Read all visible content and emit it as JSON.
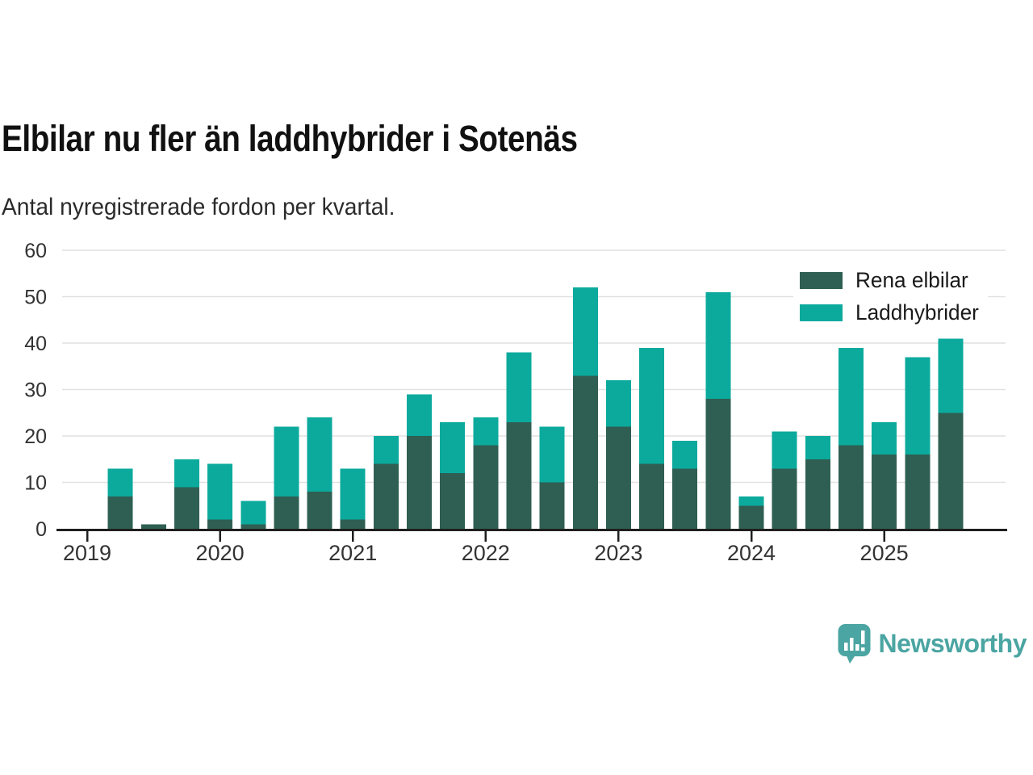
{
  "header": {
    "title": "Elbilar nu fler än laddhybrider i Sotenäs",
    "subtitle": "Antal nyregistrerade fordon per kvartal."
  },
  "colors": {
    "rena_elbilar": "#2F5F53",
    "laddhybrider": "#0BAA9D",
    "gridline": "#E1E1E1",
    "axis": "#1F1F1F",
    "tick_label": "#333333",
    "brand_teal": "#4BA5A2"
  },
  "legend": {
    "items": [
      {
        "label": "Rena elbilar",
        "color": "#2F5F53"
      },
      {
        "label": "Laddhybrider",
        "color": "#0BAA9D"
      }
    ]
  },
  "branding": {
    "logo_text": "Newsworthy",
    "logo_icon": "newsworthy-speech-bubble-bar-chart-icon"
  },
  "chart_data": {
    "type": "bar",
    "stacked": true,
    "title": "Elbilar nu fler än laddhybrider i Sotenäs",
    "subtitle": "Antal nyregistrerade fordon per kvartal.",
    "x": [
      "2019 Q1",
      "2019 Q2",
      "2019 Q3",
      "2019 Q4",
      "2020 Q1",
      "2020 Q2",
      "2020 Q3",
      "2020 Q4",
      "2021 Q1",
      "2021 Q2",
      "2021 Q3",
      "2021 Q4",
      "2022 Q1",
      "2022 Q2",
      "2022 Q3",
      "2022 Q4",
      "2023 Q1",
      "2023 Q2",
      "2023 Q3",
      "2023 Q4",
      "2024 Q1",
      "2024 Q2",
      "2024 Q3",
      "2024 Q4",
      "2025 Q1",
      "2025 Q2",
      "2025 Q3"
    ],
    "series": [
      {
        "name": "Rena elbilar",
        "color": "#2F5F53",
        "values": [
          0,
          7,
          1,
          9,
          2,
          1,
          7,
          8,
          2,
          14,
          20,
          12,
          18,
          23,
          10,
          33,
          22,
          14,
          13,
          28,
          5,
          13,
          15,
          18,
          16,
          16,
          25
        ]
      },
      {
        "name": "Laddhybrider",
        "color": "#0BAA9D",
        "values": [
          0,
          6,
          0,
          6,
          12,
          5,
          15,
          16,
          11,
          6,
          9,
          11,
          6,
          15,
          12,
          19,
          10,
          25,
          6,
          23,
          2,
          8,
          5,
          21,
          7,
          21,
          16
        ]
      }
    ],
    "totals": [
      0,
      13,
      1,
      15,
      14,
      6,
      22,
      24,
      13,
      20,
      29,
      23,
      24,
      38,
      22,
      52,
      32,
      39,
      19,
      51,
      7,
      21,
      20,
      39,
      23,
      37,
      41
    ],
    "ylim": [
      0,
      60
    ],
    "yticks": [
      0,
      10,
      20,
      30,
      40,
      50,
      60
    ],
    "xticks": [
      "2019",
      "2020",
      "2021",
      "2022",
      "2023",
      "2024",
      "2025"
    ],
    "grid": true,
    "legend_position": "top-right"
  }
}
